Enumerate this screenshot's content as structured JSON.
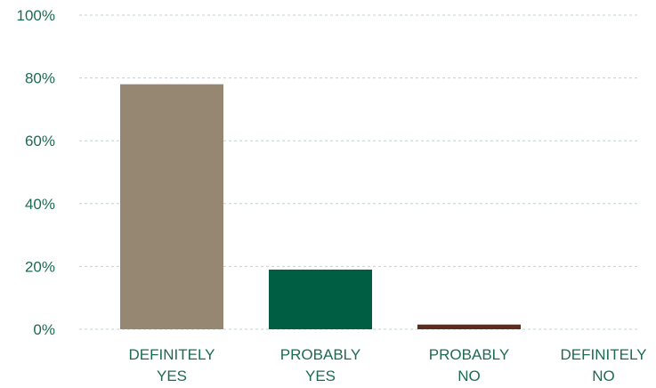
{
  "chart_data": {
    "type": "bar",
    "title": "",
    "xlabel": "",
    "ylabel": "",
    "categories": [
      [
        "DEFINITELY",
        "YES"
      ],
      [
        "PROBABLY",
        "YES"
      ],
      [
        "PROBABLY",
        "NO"
      ],
      [
        "DEFINITELY",
        "NO"
      ]
    ],
    "values": [
      78,
      19,
      1.5,
      0
    ],
    "bar_colors": [
      "#968773",
      "#005e43",
      "#5c2d1a",
      "#9a8a78"
    ],
    "ylim": [
      0,
      100
    ],
    "yticks": [
      0,
      20,
      40,
      60,
      80,
      100
    ],
    "ytick_labels": [
      "0%",
      "20%",
      "40%",
      "60%",
      "80%",
      "100%"
    ],
    "grid": true,
    "grid_style": "dashed",
    "grid_color": "#b8d8cf",
    "label_color": "#1c6b52",
    "legend": "none"
  }
}
